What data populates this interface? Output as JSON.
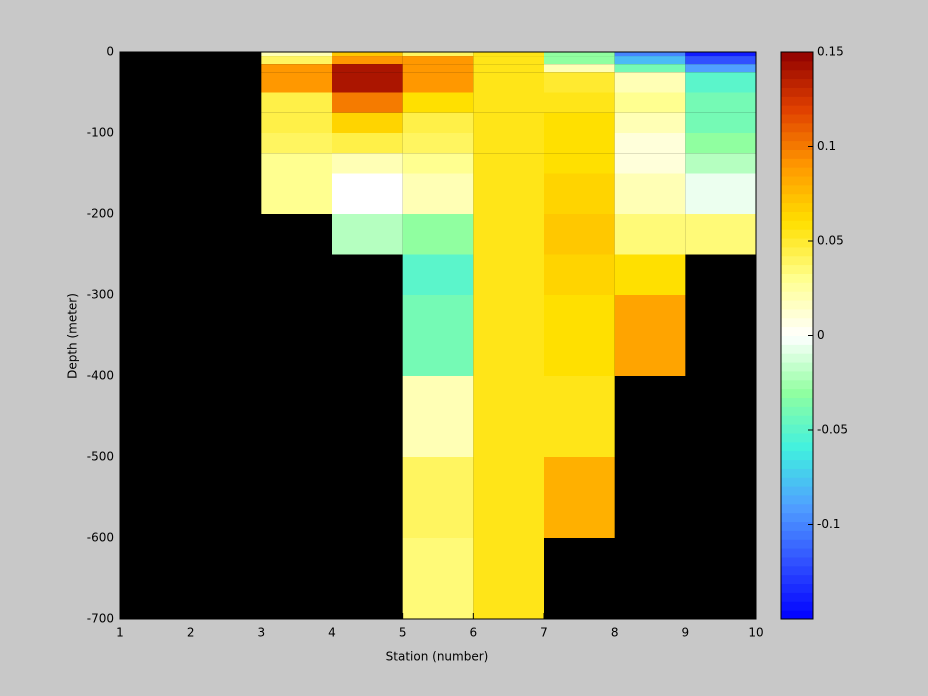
{
  "chart_data": {
    "type": "heatmap",
    "xlabel": "Station (number)",
    "ylabel": "Depth (meter)",
    "x_edges": [
      1,
      2,
      3,
      4,
      5,
      6,
      7,
      8,
      9,
      10
    ],
    "y_edges": [
      0,
      -5,
      -15,
      -25,
      -50,
      -75,
      -100,
      -125,
      -150,
      -200,
      -250,
      -300,
      -400,
      -500,
      -600,
      -700
    ],
    "values": [
      [
        null,
        null,
        0.02,
        0.07,
        0.04,
        0.055,
        -0.03,
        -0.1,
        -0.14
      ],
      [
        null,
        null,
        0.04,
        0.09,
        0.09,
        0.055,
        -0.03,
        -0.08,
        -0.12
      ],
      [
        null,
        null,
        0.09,
        0.14,
        0.09,
        0.055,
        0.02,
        -0.04,
        -0.09
      ],
      [
        null,
        null,
        0.09,
        0.14,
        0.09,
        0.055,
        0.05,
        0.02,
        -0.05
      ],
      [
        null,
        null,
        0.045,
        0.1,
        0.06,
        0.055,
        0.055,
        0.03,
        -0.04
      ],
      [
        null,
        null,
        0.045,
        0.065,
        0.045,
        0.055,
        0.06,
        0.02,
        -0.04
      ],
      [
        null,
        null,
        0.04,
        0.045,
        0.04,
        0.055,
        0.06,
        0.01,
        -0.03
      ],
      [
        null,
        null,
        0.03,
        0.02,
        0.03,
        0.055,
        0.06,
        0.01,
        -0.02
      ],
      [
        null,
        null,
        0.03,
        0.0,
        0.02,
        0.055,
        0.065,
        0.02,
        -0.005
      ],
      [
        null,
        null,
        null,
        -0.02,
        -0.03,
        0.055,
        0.07,
        0.035,
        0.035
      ],
      [
        null,
        null,
        null,
        null,
        -0.05,
        0.055,
        0.065,
        0.06,
        null
      ],
      [
        null,
        null,
        null,
        null,
        -0.04,
        0.055,
        0.06,
        0.085,
        null
      ],
      [
        null,
        null,
        null,
        null,
        0.02,
        0.055,
        0.055,
        null,
        null
      ],
      [
        null,
        null,
        null,
        null,
        0.04,
        0.055,
        0.08,
        null,
        null
      ],
      [
        null,
        null,
        null,
        null,
        0.035,
        0.055,
        null,
        null,
        null
      ]
    ],
    "xlim": [
      1,
      10
    ],
    "xticks": [
      1,
      2,
      3,
      4,
      5,
      6,
      7,
      8,
      9,
      10
    ],
    "ylim": [
      -700,
      0
    ],
    "yticks": [
      -700,
      -600,
      -500,
      -400,
      -300,
      -200,
      -100,
      0
    ],
    "clim": [
      -0.15,
      0.15
    ],
    "cticks": [
      -0.1,
      -0.05,
      0,
      0.05,
      0.1,
      0.15
    ],
    "colormap": [
      "#0000ff",
      "#3050ff",
      "#50a0ff",
      "#40f0e0",
      "#90ffa0",
      "#ffffff",
      "#ffff90",
      "#ffe000",
      "#ff9800",
      "#e04000",
      "#900000"
    ],
    "missing_color": "#000000"
  }
}
